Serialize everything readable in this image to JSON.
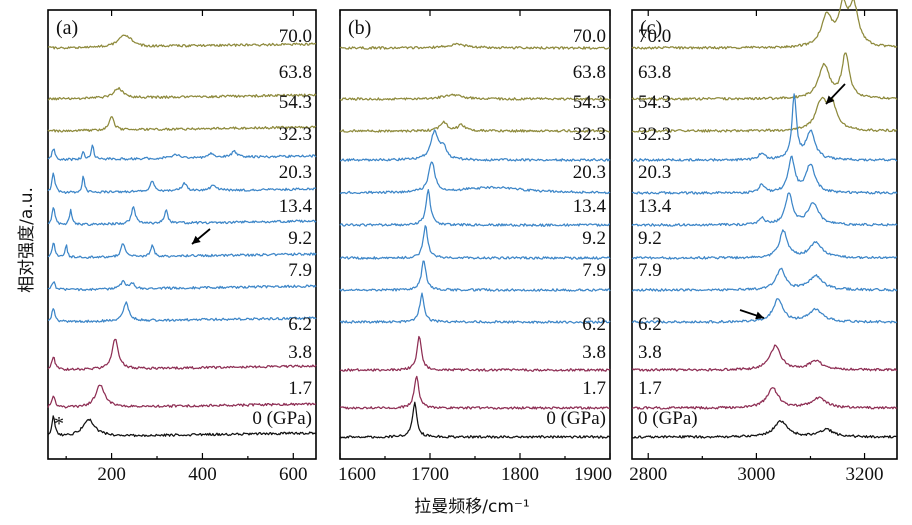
{
  "colors": {
    "olive": "#8e8a3c",
    "blue": "#3d86c8",
    "maroon": "#8e2e54",
    "black": "#111111"
  },
  "axes": {
    "ylabel": "相对强度/a.u.",
    "xlabel": "拉曼频移/cm⁻¹"
  },
  "chart_data": [
    {
      "type": "line",
      "panel": "(a)",
      "xlim": [
        60,
        650
      ],
      "xticks": [
        200,
        400,
        600
      ],
      "tick_labels": [
        "200",
        "400",
        "600"
      ],
      "pressures": [
        {
          "label": "70.0",
          "color": "olive",
          "peaks": [
            [
              225,
              0.7,
              14
            ],
            [
              240,
              0.3,
              10
            ]
          ]
        },
        {
          "label": "63.8",
          "color": "olive",
          "peaks": [
            [
              215,
              0.7,
              12
            ]
          ]
        },
        {
          "label": "54.3",
          "color": "olive",
          "peaks": [
            [
              200,
              1.0,
              6
            ]
          ]
        },
        {
          "label": "32.3",
          "color": "blue",
          "peaks": [
            [
              72,
              0.8,
              4
            ],
            [
              138,
              0.6,
              3
            ],
            [
              158,
              1.1,
              3
            ],
            [
              340,
              0.3,
              8
            ],
            [
              420,
              0.3,
              8
            ],
            [
              470,
              0.4,
              8
            ]
          ]
        },
        {
          "label": "20.3",
          "color": "blue",
          "peaks": [
            [
              72,
              1.4,
              4
            ],
            [
              138,
              1.2,
              3
            ],
            [
              290,
              0.8,
              5
            ],
            [
              360,
              0.6,
              6
            ],
            [
              425,
              0.4,
              8
            ]
          ]
        },
        {
          "label": "13.4",
          "color": "blue",
          "peaks": [
            [
              72,
              1.2,
              4
            ],
            [
              110,
              1.0,
              3
            ],
            [
              248,
              1.2,
              5
            ],
            [
              320,
              1.0,
              4
            ]
          ]
        },
        {
          "label": "9.2",
          "color": "blue",
          "peaks": [
            [
              72,
              1.1,
              4
            ],
            [
              100,
              0.9,
              3
            ],
            [
              225,
              1.0,
              5
            ],
            [
              290,
              0.8,
              4
            ]
          ]
        },
        {
          "label": "7.9",
          "color": "blue",
          "peaks": [
            [
              72,
              0.6,
              4
            ],
            [
              225,
              0.5,
              6
            ],
            [
              245,
              0.4,
              6
            ]
          ]
        },
        {
          "label": "6.2",
          "color": "blue",
          "peaks": [
            [
              72,
              1.0,
              4
            ],
            [
              232,
              1.3,
              7
            ]
          ]
        },
        {
          "label": "3.8",
          "color": "maroon",
          "peaks": [
            [
              72,
              1.0,
              4
            ],
            [
              208,
              2.2,
              8
            ]
          ]
        },
        {
          "label": "1.7",
          "color": "maroon",
          "peaks": [
            [
              72,
              0.9,
              4
            ],
            [
              175,
              1.6,
              12
            ]
          ]
        },
        {
          "label": "0 (GPa)",
          "color": "black",
          "peaks": [
            [
              72,
              1.5,
              4
            ],
            [
              150,
              1.2,
              16
            ]
          ]
        }
      ],
      "annotations": [
        {
          "type": "asterisk",
          "text": "*",
          "near": "0 GPa, ~80 cm-1"
        },
        {
          "type": "arrow",
          "near": "9.2 GPa, ~420 cm-1"
        }
      ]
    },
    {
      "type": "line",
      "panel": "(b)",
      "xlim": [
        1600,
        1900
      ],
      "xticks": [
        1600,
        1700,
        1800,
        1900
      ],
      "tick_labels": [
        "1600",
        "1700",
        "1800",
        "1900"
      ],
      "pressures": [
        {
          "label": "70.0",
          "color": "olive",
          "peaks": [
            [
              1730,
              0.25,
              14
            ]
          ]
        },
        {
          "label": "63.8",
          "color": "olive",
          "peaks": [
            [
              1725,
              0.3,
              12
            ]
          ]
        },
        {
          "label": "54.3",
          "color": "olive",
          "peaks": [
            [
              1715,
              0.6,
              5
            ],
            [
              1735,
              0.4,
              5
            ]
          ]
        },
        {
          "label": "32.3",
          "color": "blue",
          "peaks": [
            [
              1705,
              2.0,
              5
            ],
            [
              1715,
              0.8,
              4
            ]
          ]
        },
        {
          "label": "20.3",
          "color": "blue",
          "peaks": [
            [
              1702,
              2.2,
              4
            ],
            [
              1770,
              0.4,
              40
            ]
          ]
        },
        {
          "label": "13.4",
          "color": "blue",
          "peaks": [
            [
              1698,
              2.5,
              3
            ]
          ]
        },
        {
          "label": "9.2",
          "color": "blue",
          "peaks": [
            [
              1695,
              2.3,
              3
            ]
          ]
        },
        {
          "label": "7.9",
          "color": "blue",
          "peaks": [
            [
              1693,
              2.1,
              3
            ]
          ]
        },
        {
          "label": "6.2",
          "color": "blue",
          "peaks": [
            [
              1691,
              2.0,
              3
            ]
          ]
        },
        {
          "label": "3.8",
          "color": "maroon",
          "peaks": [
            [
              1688,
              2.4,
              3
            ]
          ]
        },
        {
          "label": "1.7",
          "color": "maroon",
          "peaks": [
            [
              1685,
              2.3,
              3
            ]
          ]
        },
        {
          "label": "0 (GPa)",
          "color": "black",
          "peaks": [
            [
              1683,
              2.4,
              3
            ]
          ]
        }
      ]
    },
    {
      "type": "line",
      "panel": "(c)",
      "xlim": [
        2770,
        3260
      ],
      "xticks": [
        2800,
        3000,
        3200
      ],
      "tick_labels": [
        "2800",
        "3000",
        "3200"
      ],
      "pressures": [
        {
          "label": "70.0",
          "color": "olive",
          "peaks": [
            [
              3130,
              2.2,
              12
            ],
            [
              3160,
              2.6,
              10
            ],
            [
              3180,
              2.8,
              10
            ]
          ]
        },
        {
          "label": "63.8",
          "color": "olive",
          "peaks": [
            [
              3125,
              2.4,
              12
            ],
            [
              3165,
              3.2,
              8
            ]
          ]
        },
        {
          "label": "54.3",
          "color": "olive",
          "peaks": [
            [
              3120,
              2.0,
              12
            ],
            [
              3140,
              1.8,
              10
            ]
          ]
        },
        {
          "label": "32.3",
          "color": "blue",
          "peaks": [
            [
              3070,
              4.5,
              5
            ],
            [
              3100,
              2.0,
              10
            ],
            [
              3010,
              0.5,
              6
            ]
          ]
        },
        {
          "label": "20.3",
          "color": "blue",
          "peaks": [
            [
              3065,
              2.5,
              7
            ],
            [
              3100,
              2.0,
              10
            ],
            [
              3010,
              0.6,
              6
            ]
          ]
        },
        {
          "label": "13.4",
          "color": "blue",
          "peaks": [
            [
              3060,
              2.2,
              8
            ],
            [
              3105,
              1.5,
              12
            ],
            [
              3010,
              0.5,
              6
            ]
          ]
        },
        {
          "label": "9.2",
          "color": "blue",
          "peaks": [
            [
              3050,
              1.9,
              9
            ],
            [
              3110,
              1.1,
              14
            ]
          ]
        },
        {
          "label": "7.9",
          "color": "blue",
          "peaks": [
            [
              3045,
              1.5,
              10
            ],
            [
              3110,
              1.0,
              15
            ]
          ]
        },
        {
          "label": "6.2",
          "color": "blue",
          "peaks": [
            [
              3040,
              1.6,
              11
            ],
            [
              3110,
              0.9,
              15
            ]
          ]
        },
        {
          "label": "3.8",
          "color": "maroon",
          "peaks": [
            [
              3035,
              1.7,
              12
            ],
            [
              3110,
              0.6,
              16
            ]
          ]
        },
        {
          "label": "1.7",
          "color": "maroon",
          "peaks": [
            [
              3030,
              1.4,
              13
            ],
            [
              3115,
              0.7,
              16
            ]
          ]
        },
        {
          "label": "0 (GPa)",
          "color": "black",
          "peaks": [
            [
              3045,
              1.1,
              15
            ],
            [
              3130,
              0.5,
              16
            ]
          ]
        }
      ],
      "annotations": [
        {
          "type": "arrow",
          "near": "54.3 GPa, ~3100 cm-1"
        },
        {
          "type": "arrow",
          "near": "6.2 GPa, ~3030 cm-1"
        }
      ]
    }
  ]
}
